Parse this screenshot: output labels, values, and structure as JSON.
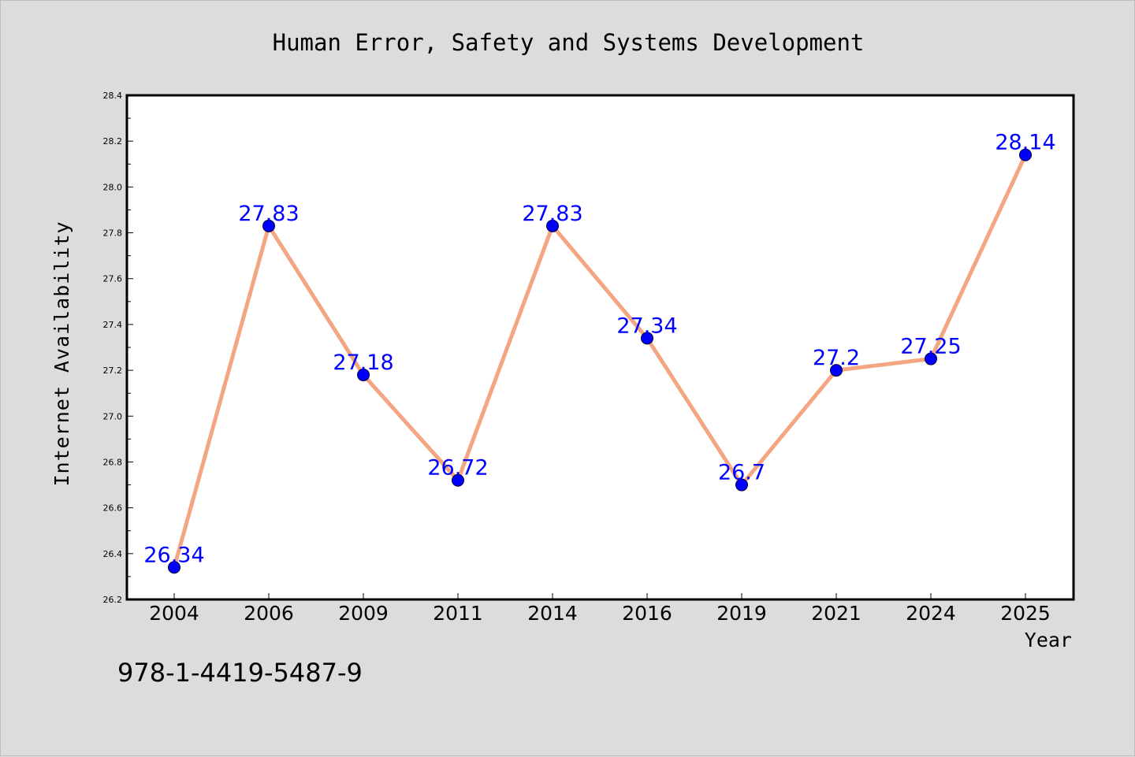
{
  "chart_data": {
    "type": "line",
    "title": "Human Error, Safety and Systems Development",
    "xlabel": "Year",
    "ylabel": "Internet Availability",
    "categories": [
      "2004",
      "2006",
      "2009",
      "2011",
      "2014",
      "2016",
      "2019",
      "2021",
      "2024",
      "2025"
    ],
    "series": [
      {
        "values": [
          26.34,
          27.83,
          27.18,
          26.72,
          27.83,
          27.34,
          26.7,
          27.2,
          27.25,
          28.14
        ],
        "data_labels": [
          "26.34",
          "27.83",
          "27.18",
          "26.72",
          "27.83",
          "27.34",
          "26.7",
          "27.2",
          "27.25",
          "28.14"
        ]
      }
    ],
    "ylim": [
      26.2,
      28.4
    ],
    "yticks": [
      "26.2",
      "26.4",
      "26.6",
      "26.8",
      "27.0",
      "27.2",
      "27.4",
      "27.6",
      "27.8",
      "28.0",
      "28.2",
      "28.4"
    ],
    "grid": false,
    "line_color": "#f4a582",
    "marker_color": "#0000ff",
    "label_color": "#0000ff",
    "background_color": "#dcdcdc",
    "plot_background": "#ffffff"
  },
  "annotation": {
    "isbn": "978-1-4419-5487-9"
  }
}
